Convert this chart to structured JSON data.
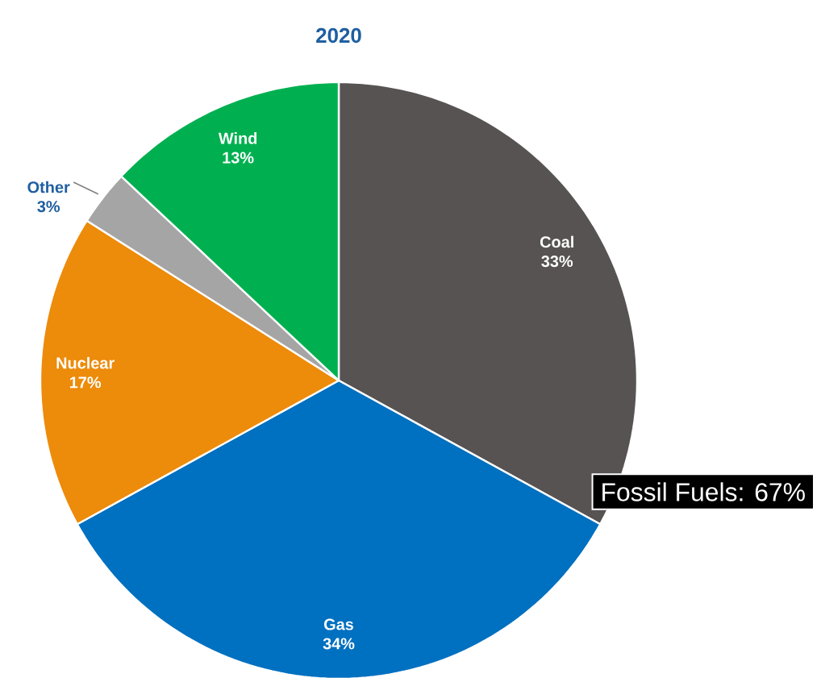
{
  "chart_data": {
    "type": "pie",
    "title": "2020",
    "categories": [
      "Coal",
      "Gas",
      "Nuclear",
      "Other",
      "Wind"
    ],
    "values": [
      33,
      34,
      17,
      3,
      13
    ],
    "value_labels": [
      "33%",
      "34%",
      "17%",
      "3%",
      "13%"
    ],
    "colors": [
      "#575352",
      "#0070c0",
      "#ed8b0a",
      "#a5a5a5",
      "#00b050"
    ],
    "annotations": [
      "Fossil Fuels: 67%"
    ],
    "legend": false
  }
}
